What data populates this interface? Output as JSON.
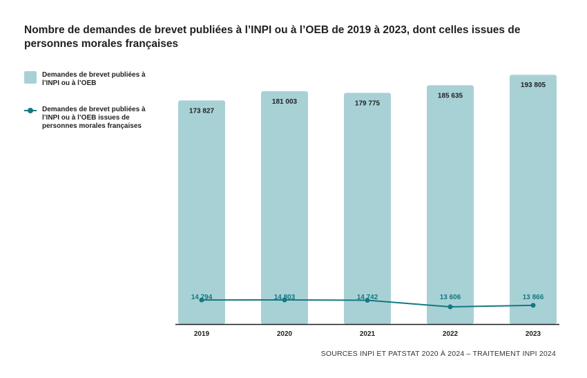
{
  "title": "Nombre de demandes de brevet publiées à l’INPI ou à l’OEB de 2019 à 2023, dont celles issues de personnes morales françaises",
  "legend": {
    "bars": "Demandes de brevet publiées à l’INPI ou à l’OEB",
    "line": "Demandes de brevet publiées à l’INPI ou à l’OEB issues de personnes morales françaises"
  },
  "source": "SOURCES INPI ET PATSTAT 2020 À 2024 – TRAITEMENT INPI 2024",
  "colors": {
    "bar": "#a8d1d6",
    "line": "#147880",
    "axis": "#1a1a1a",
    "label": "#1f1f1f"
  },
  "chart_data": {
    "type": "bar",
    "categories": [
      "2019",
      "2020",
      "2021",
      "2022",
      "2023"
    ],
    "series": [
      {
        "name": "Demandes de brevet publiées à l’INPI ou à l’OEB",
        "kind": "bar",
        "values": [
          173827,
          181003,
          179775,
          185635,
          193805
        ],
        "labels": [
          "173 827",
          "181 003",
          "179 775",
          "185 635",
          "193 805"
        ]
      },
      {
        "name": "Demandes de brevet publiées à l’INPI ou à l’OEB issues de personnes morales françaises",
        "kind": "line",
        "values": [
          14794,
          14803,
          14742,
          13606,
          13866
        ],
        "labels": [
          "14 794",
          "14 803",
          "14 742",
          "13 606",
          "13 866"
        ]
      }
    ],
    "ylim": [
      0,
      195000
    ],
    "xlabel": "",
    "ylabel": "",
    "grid": false
  }
}
